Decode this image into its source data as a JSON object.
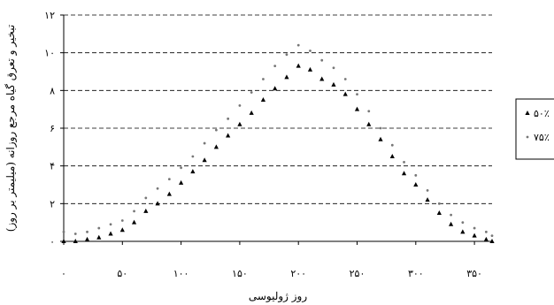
{
  "chart_data": {
    "type": "scatter",
    "xlabel": "روز ژولیوسی",
    "ylabel": "تبخیر و تعرق گیاه مرجع روزانه (میلیمتر بر روز)",
    "xlim": [
      0,
      365
    ],
    "ylim": [
      0,
      12
    ],
    "x_ticks": [
      "۰",
      "۵۰",
      "۱۰۰",
      "۱۵۰",
      "۲۰۰",
      "۲۵۰",
      "۳۰۰",
      "۳۵۰"
    ],
    "x_tick_values": [
      0,
      50,
      100,
      150,
      200,
      250,
      300,
      350
    ],
    "y_ticks": [
      "۰",
      "۲",
      "۴",
      "۶",
      "۸",
      "۱۰",
      "۱۲"
    ],
    "y_tick_values": [
      0,
      2,
      4,
      6,
      8,
      10,
      12
    ],
    "grid": "horizontal-dashed",
    "legend_position": "right",
    "series": [
      {
        "name": "۵۰٪",
        "marker": "triangle",
        "color": "#000000",
        "x": [
          0,
          10,
          20,
          30,
          40,
          50,
          60,
          70,
          80,
          90,
          100,
          110,
          120,
          130,
          140,
          150,
          160,
          170,
          180,
          190,
          200,
          210,
          220,
          230,
          240,
          250,
          260,
          270,
          280,
          290,
          300,
          310,
          320,
          330,
          340,
          350,
          360,
          365
        ],
        "y": [
          0.0,
          0.0,
          0.1,
          0.2,
          0.4,
          0.6,
          1.0,
          1.6,
          2.0,
          2.5,
          3.1,
          3.7,
          4.3,
          5.0,
          5.6,
          6.2,
          6.8,
          7.5,
          8.1,
          8.7,
          9.3,
          9.1,
          8.6,
          8.3,
          7.8,
          7.0,
          6.2,
          5.4,
          4.5,
          3.6,
          3.0,
          2.2,
          1.5,
          0.9,
          0.5,
          0.3,
          0.1,
          0.0
        ]
      },
      {
        "name": "۷۵٪",
        "marker": "dot",
        "color": "#777777",
        "x": [
          0,
          10,
          20,
          30,
          40,
          50,
          60,
          70,
          80,
          90,
          100,
          110,
          120,
          130,
          140,
          150,
          160,
          170,
          180,
          190,
          200,
          210,
          220,
          230,
          240,
          250,
          260,
          270,
          280,
          290,
          300,
          310,
          320,
          330,
          340,
          350,
          360,
          365
        ],
        "y": [
          0.5,
          0.4,
          0.5,
          0.7,
          0.9,
          1.1,
          1.6,
          2.3,
          2.8,
          3.3,
          3.9,
          4.5,
          5.2,
          5.9,
          6.5,
          7.2,
          7.9,
          8.6,
          9.3,
          9.9,
          10.4,
          10.1,
          9.6,
          9.2,
          8.6,
          7.8,
          6.9,
          6.0,
          5.1,
          4.2,
          3.5,
          2.7,
          2.0,
          1.4,
          1.0,
          0.7,
          0.5,
          0.3
        ]
      }
    ]
  }
}
